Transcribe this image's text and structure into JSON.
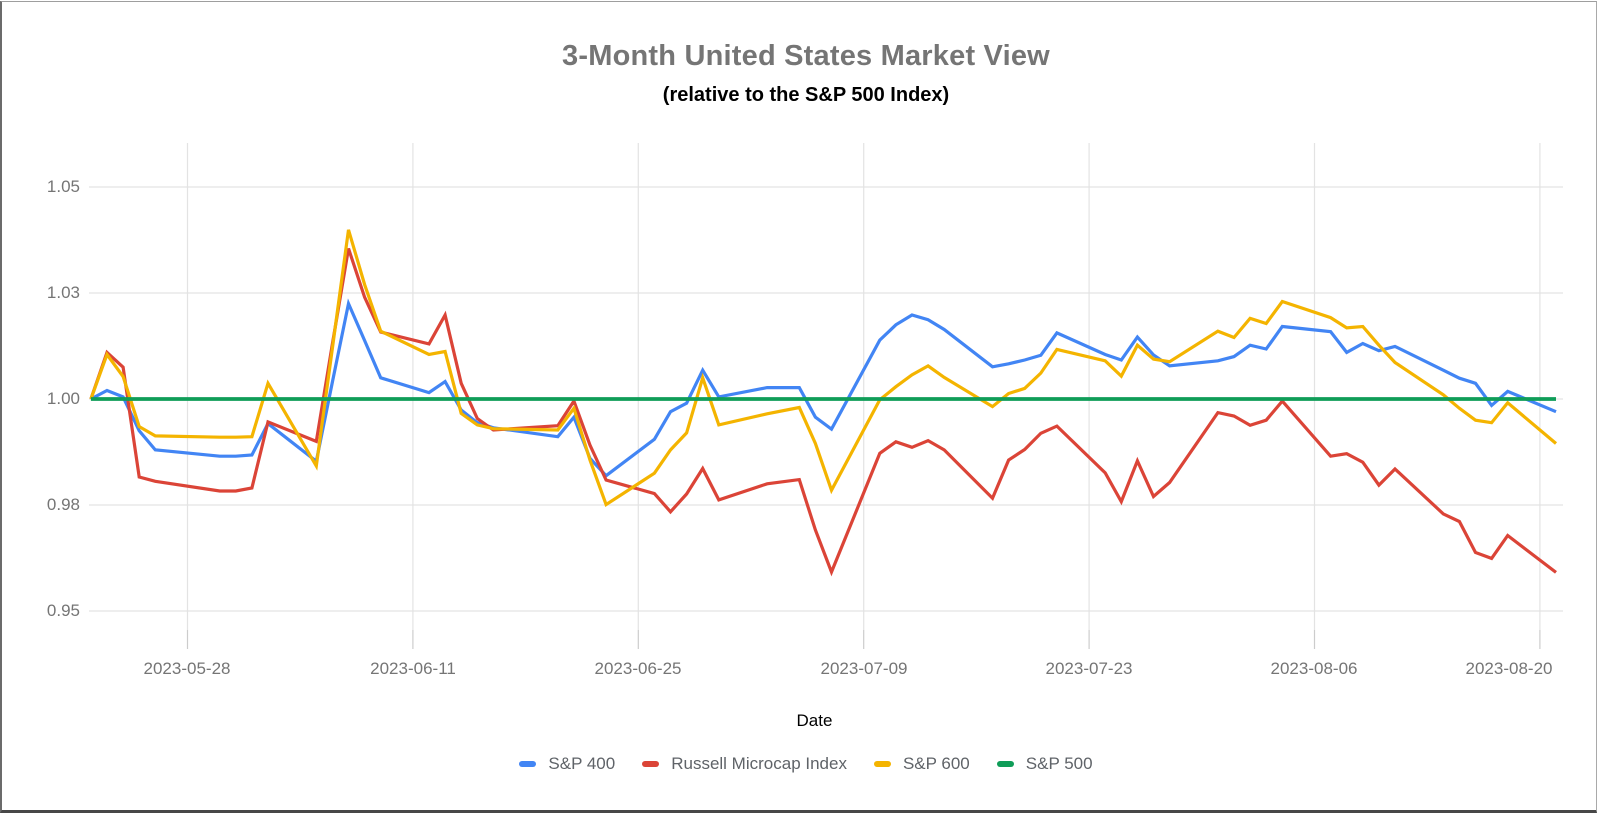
{
  "page": {
    "background": "#ffffff",
    "frame_border_color": "#474747"
  },
  "chart_data": {
    "type": "line",
    "title": "3-Month United States Market View",
    "subtitle": "(relative to the S&P 500 Index)",
    "xlabel": "Date",
    "ylabel": "",
    "grid": true,
    "legend_position": "bottom",
    "ylim": [
      0.945,
      1.059
    ],
    "y_axis": {
      "ticks": [
        {
          "label": "1.05",
          "value": 1.05
        },
        {
          "label": "1.03",
          "value": 1.025
        },
        {
          "label": "1.00",
          "value": 1.0
        },
        {
          "label": "0.98",
          "value": 0.975
        },
        {
          "label": "0.95",
          "value": 0.95
        }
      ]
    },
    "x_axis": {
      "tick_labels": [
        "2023-05-28",
        "2023-06-11",
        "2023-06-25",
        "2023-07-09",
        "2023-07-23",
        "2023-08-06",
        "2023-08-20"
      ]
    },
    "dates": [
      "2023-05-22",
      "2023-05-23",
      "2023-05-24",
      "2023-05-25",
      "2023-05-26",
      "2023-05-30",
      "2023-05-31",
      "2023-06-01",
      "2023-06-02",
      "2023-06-05",
      "2023-06-06",
      "2023-06-07",
      "2023-06-08",
      "2023-06-09",
      "2023-06-12",
      "2023-06-13",
      "2023-06-14",
      "2023-06-15",
      "2023-06-16",
      "2023-06-20",
      "2023-06-21",
      "2023-06-22",
      "2023-06-23",
      "2023-06-26",
      "2023-06-27",
      "2023-06-28",
      "2023-06-29",
      "2023-06-30",
      "2023-07-03",
      "2023-07-05",
      "2023-07-06",
      "2023-07-07",
      "2023-07-10",
      "2023-07-11",
      "2023-07-12",
      "2023-07-13",
      "2023-07-14",
      "2023-07-17",
      "2023-07-18",
      "2023-07-19",
      "2023-07-20",
      "2023-07-21",
      "2023-07-24",
      "2023-07-25",
      "2023-07-26",
      "2023-07-27",
      "2023-07-28",
      "2023-07-31",
      "2023-08-01",
      "2023-08-02",
      "2023-08-03",
      "2023-08-04",
      "2023-08-07",
      "2023-08-08",
      "2023-08-09",
      "2023-08-10",
      "2023-08-11",
      "2023-08-14",
      "2023-08-15",
      "2023-08-16",
      "2023-08-17",
      "2023-08-18",
      "2023-08-21"
    ],
    "series": [
      {
        "name": "S&P 400",
        "color": "#4285F4",
        "values": [
          1.0,
          1.002,
          1.0005,
          0.9925,
          0.988,
          0.9865,
          0.9865,
          0.9868,
          0.9942,
          0.9853,
          1.004,
          1.0225,
          1.0138,
          1.005,
          1.0015,
          1.0041,
          0.9974,
          0.9944,
          0.9932,
          0.9911,
          0.9957,
          0.986,
          0.9819,
          0.9905,
          0.997,
          0.999,
          1.0068,
          1.0005,
          1.0027,
          1.0027,
          0.9957,
          0.9929,
          1.0139,
          1.0175,
          1.0198,
          1.0187,
          1.0164,
          1.0076,
          1.0083,
          1.0092,
          1.0103,
          1.0156,
          1.0105,
          1.0092,
          1.0146,
          1.0104,
          1.0078,
          1.009,
          1.01,
          1.0127,
          1.0118,
          1.0171,
          1.0159,
          1.011,
          1.0131,
          1.0114,
          1.0124,
          1.0068,
          1.0049,
          1.0037,
          0.9985,
          1.0018,
          0.997
        ]
      },
      {
        "name": "Russell Microcap Index",
        "color": "#DB4437",
        "values": [
          1.0,
          1.011,
          1.0075,
          0.9816,
          0.9806,
          0.9783,
          0.9783,
          0.979,
          0.9946,
          0.99,
          1.013,
          1.0355,
          1.024,
          1.0158,
          1.013,
          1.0198,
          1.0037,
          0.9954,
          0.9927,
          0.9937,
          0.9995,
          0.9891,
          0.9809,
          0.9777,
          0.9734,
          0.9776,
          0.9836,
          0.9762,
          0.98,
          0.981,
          0.9691,
          0.9592,
          0.9872,
          0.9899,
          0.9886,
          0.9902,
          0.988,
          0.9766,
          0.9856,
          0.9881,
          0.9919,
          0.9936,
          0.9826,
          0.9758,
          0.9854,
          0.977,
          0.9803,
          0.9968,
          0.996,
          0.9938,
          0.995,
          0.9995,
          0.9865,
          0.9871,
          0.9851,
          0.9797,
          0.9835,
          0.9729,
          0.9711,
          0.9638,
          0.9624,
          0.9678,
          0.9591
        ]
      },
      {
        "name": "S&P 600",
        "color": "#F4B400",
        "values": [
          1.0,
          1.0105,
          1.0053,
          0.9935,
          0.9913,
          0.991,
          0.991,
          0.9911,
          1.0037,
          0.9842,
          1.012,
          1.0399,
          1.027,
          1.016,
          1.0105,
          1.0112,
          0.9966,
          0.9939,
          0.993,
          0.9927,
          0.9978,
          0.9856,
          0.9751,
          0.9825,
          0.988,
          0.992,
          1.005,
          0.9939,
          0.9965,
          0.998,
          0.9895,
          0.9785,
          0.9998,
          1.0029,
          1.0057,
          1.0078,
          1.0051,
          0.9982,
          1.0013,
          1.0025,
          1.0061,
          1.0117,
          1.009,
          1.0054,
          1.0127,
          1.0094,
          1.0088,
          1.016,
          1.0145,
          1.019,
          1.0178,
          1.023,
          1.0192,
          1.0168,
          1.0171,
          1.0127,
          1.0086,
          1.001,
          0.9978,
          0.995,
          0.9944,
          0.9991,
          0.9895
        ]
      },
      {
        "name": "S&P 500",
        "color": "#0F9D58",
        "values": [
          1,
          1,
          1,
          1,
          1,
          1,
          1,
          1,
          1,
          1,
          1,
          1,
          1,
          1,
          1,
          1,
          1,
          1,
          1,
          1,
          1,
          1,
          1,
          1,
          1,
          1,
          1,
          1,
          1,
          1,
          1,
          1,
          1,
          1,
          1,
          1,
          1,
          1,
          1,
          1,
          1,
          1,
          1,
          1,
          1,
          1,
          1,
          1,
          1,
          1,
          1,
          1,
          1,
          1,
          1,
          1,
          1,
          1,
          1,
          1,
          1,
          1,
          1
        ]
      }
    ]
  }
}
